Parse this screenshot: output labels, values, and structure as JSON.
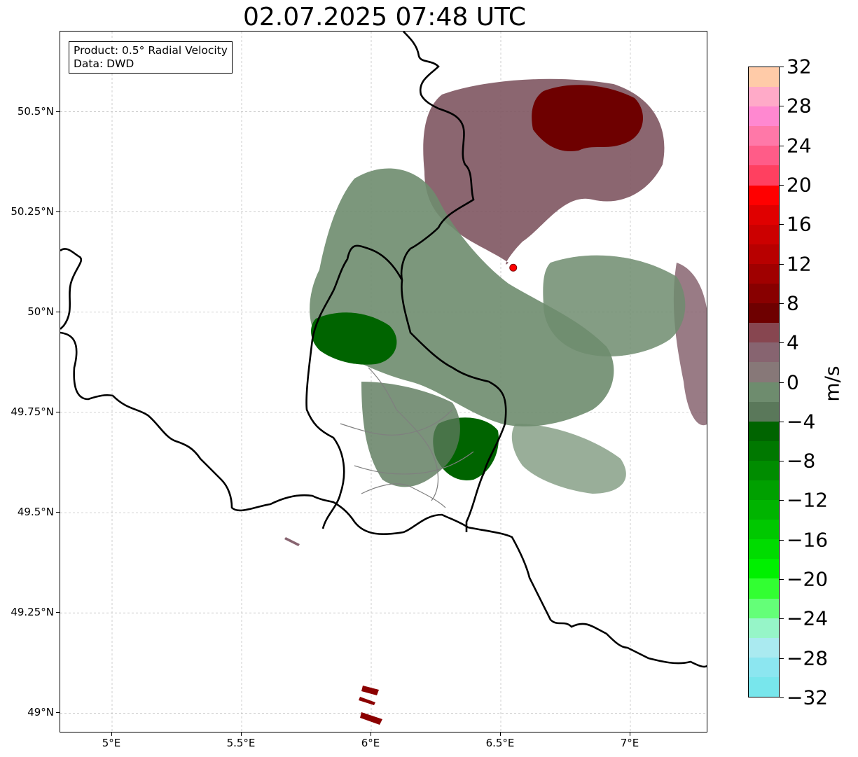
{
  "title": "02.07.2025 07:48 UTC",
  "info_box": {
    "product": "Product: 0.5° Radial Velocity",
    "data": "Data: DWD"
  },
  "axes": {
    "lon_range": [
      4.8,
      7.3
    ],
    "lat_range": [
      48.95,
      50.7
    ],
    "lat_ticks": [
      {
        "value": 50.5,
        "label": "50.5°N"
      },
      {
        "value": 50.25,
        "label": "50.25°N"
      },
      {
        "value": 50.0,
        "label": "50°N"
      },
      {
        "value": 49.75,
        "label": "49.75°N"
      },
      {
        "value": 49.5,
        "label": "49.5°N"
      },
      {
        "value": 49.25,
        "label": "49.25°N"
      },
      {
        "value": 49.0,
        "label": "49°N"
      }
    ],
    "lon_ticks": [
      {
        "value": 5.0,
        "label": "5°E"
      },
      {
        "value": 5.5,
        "label": "5.5°E"
      },
      {
        "value": 6.0,
        "label": "6°E"
      },
      {
        "value": 6.5,
        "label": "6.5°E"
      },
      {
        "value": 7.0,
        "label": "7°E"
      }
    ],
    "gridlines": true
  },
  "radar_site": {
    "lon": 6.548,
    "lat": 50.111,
    "color": "#ff0000"
  },
  "colorbar": {
    "unit": "m/s",
    "range": [
      -32,
      32
    ],
    "tick_labels": [
      "32",
      "28",
      "24",
      "20",
      "16",
      "12",
      "8",
      "4",
      "0",
      "−4",
      "−8",
      "−12",
      "−16",
      "−20",
      "−24",
      "−28",
      "−32"
    ],
    "colors_top_to_bottom": [
      "#ffcba8",
      "#ffaac8",
      "#ff88d0",
      "#ff78a8",
      "#ff5c88",
      "#ff4060",
      "#ff0000",
      "#e00000",
      "#cc0000",
      "#b80000",
      "#a00000",
      "#880000",
      "#6e0000",
      "#874650",
      "#876470",
      "#877878",
      "#6e8c6e",
      "#5a785a",
      "#006400",
      "#007800",
      "#008c00",
      "#00a000",
      "#00b400",
      "#00c800",
      "#00dc00",
      "#00f000",
      "#32ff32",
      "#64ff78",
      "#96f5c8",
      "#aaeaf0",
      "#8ce6f0",
      "#78e6ec"
    ]
  }
}
